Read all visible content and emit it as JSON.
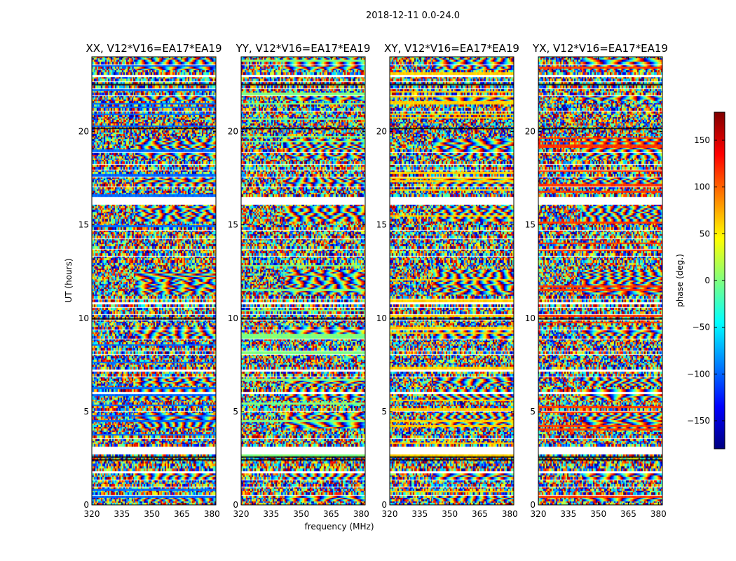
{
  "chart_data": {
    "type": "heatmap",
    "suptitle": "2018-12-11 0.0-24.0",
    "xlabel": "frequency (MHz)",
    "ylabel": "UT (hours)",
    "xlim": [
      320,
      382
    ],
    "ylim": [
      0,
      24
    ],
    "xticks": [
      320,
      335,
      350,
      365,
      380
    ],
    "yticks": [
      0,
      5,
      10,
      15,
      20
    ],
    "panels": [
      {
        "title": "XX, V12*V16=EA17*EA19",
        "polarization": "XX"
      },
      {
        "title": "YY, V12*V16=EA17*EA19",
        "polarization": "YY"
      },
      {
        "title": "XY, V12*V16=EA17*EA19",
        "polarization": "XY"
      },
      {
        "title": "YX, V12*V16=EA17*EA19",
        "polarization": "YX"
      }
    ],
    "colorbar": {
      "label": "phase (deg.)",
      "range": [
        -180,
        180
      ],
      "ticks": [
        150,
        100,
        50,
        0,
        -50,
        -100,
        -150
      ],
      "tick_labels": [
        "150",
        "100",
        "50",
        "0",
        "−50",
        "−100",
        "−150"
      ],
      "colormap": "jet"
    },
    "blank_rows_ut": [
      0.55,
      1.0,
      1.35,
      1.75,
      2.05,
      2.95,
      3.1,
      3.55,
      5.05,
      6.0,
      6.85,
      7.2,
      8.05,
      8.25,
      8.95,
      9.4,
      9.95,
      10.2,
      10.55,
      11.0,
      12.95,
      13.3,
      13.75,
      14.25,
      14.75,
      15.2,
      16.45,
      17.05,
      17.6,
      17.95,
      18.2,
      18.85,
      21.05,
      21.9,
      22.3,
      22.65,
      23.05,
      23.55
    ],
    "wide_gaps_ut": [
      [
        2.65,
        2.95
      ],
      [
        10.75,
        10.9
      ],
      [
        16.1,
        16.45
      ],
      [
        22.85,
        23.05
      ]
    ],
    "fringe_bands_ut": [
      [
        0.2,
        0.6
      ],
      [
        1.4,
        1.7
      ],
      [
        4.1,
        4.9
      ],
      [
        5.6,
        6.2
      ],
      [
        6.4,
        6.9
      ],
      [
        9.0,
        9.5
      ],
      [
        11.3,
        12.6
      ],
      [
        15.2,
        16.0
      ],
      [
        17.0,
        17.5
      ],
      [
        18.6,
        19.6
      ],
      [
        21.6,
        22.0
      ],
      [
        23.3,
        23.9
      ]
    ],
    "dark_rows_ut": [
      2.45,
      2.6,
      20.2,
      10.0,
      22.55
    ]
  }
}
